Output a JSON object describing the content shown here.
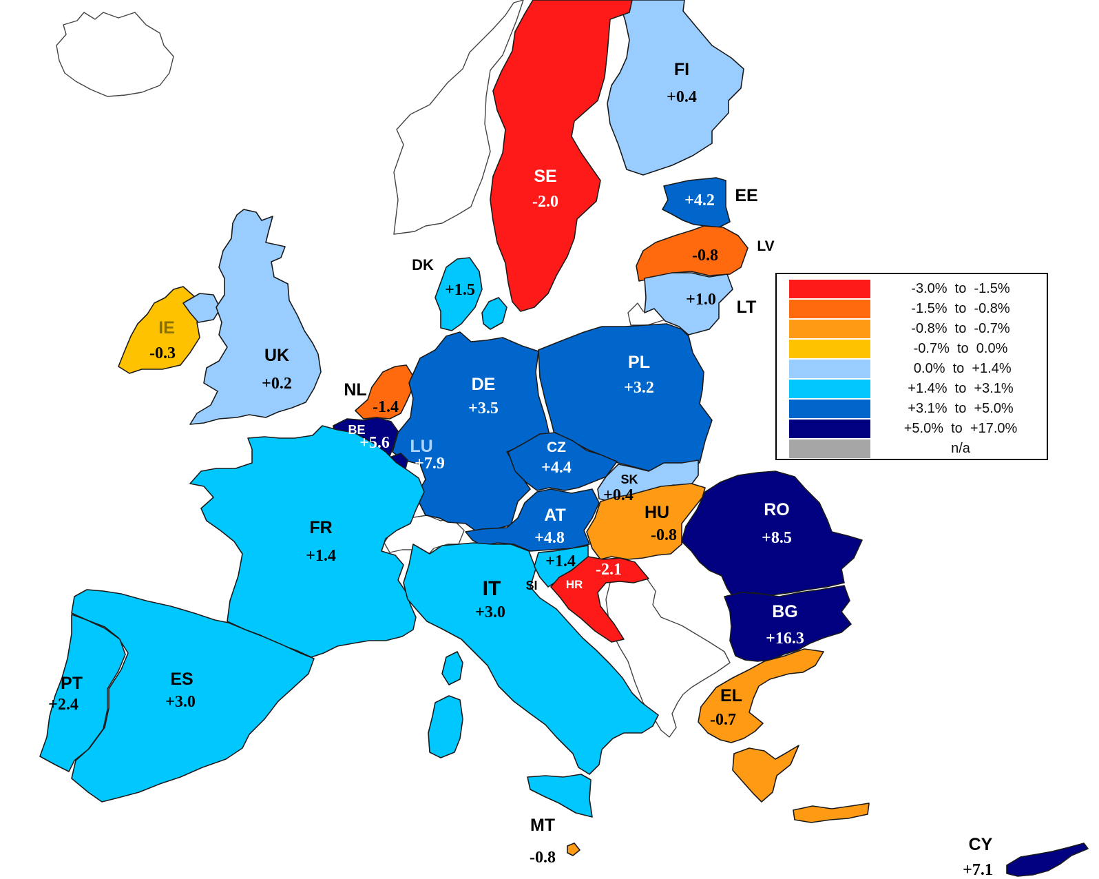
{
  "legend": {
    "items": [
      {
        "label": "-3.0%  to  -1.5%",
        "color": "#ff1a1a"
      },
      {
        "label": "-1.5%  to  -0.8%",
        "color": "#ff6a0e"
      },
      {
        "label": "-0.8%  to  -0.7%",
        "color": "#ff9a14"
      },
      {
        "label": "-0.7%  to  0.0%",
        "color": "#ffc200"
      },
      {
        "label": " 0.0%  to  +1.4%",
        "color": "#99ccff"
      },
      {
        "label": "+1.4%  to  +3.1%",
        "color": "#00c8ff"
      },
      {
        "label": "+3.1%  to  +5.0%",
        "color": "#0066cc"
      },
      {
        "label": "+5.0%  to  +17.0%",
        "color": "#000080"
      },
      {
        "label": "n/a",
        "color": "#a6a6a6"
      }
    ]
  },
  "countries": {
    "FI": {
      "code": "FI",
      "value": "+0.4",
      "color": "#99ccff"
    },
    "SE": {
      "code": "SE",
      "value": "-2.0",
      "color": "#ff1a1a"
    },
    "EE": {
      "code": "EE",
      "value": "+4.2",
      "color": "#0066cc"
    },
    "LV": {
      "code": "LV",
      "value": "-0.8",
      "color": "#ff6a0e"
    },
    "LT": {
      "code": "LT",
      "value": "+1.0",
      "color": "#99ccff"
    },
    "DK": {
      "code": "DK",
      "value": "+1.5",
      "color": "#00c8ff"
    },
    "IE": {
      "code": "IE",
      "value": "-0.3",
      "color": "#ffc200"
    },
    "UK": {
      "code": "UK",
      "value": "+0.2",
      "color": "#99ccff"
    },
    "NL": {
      "code": "NL",
      "value": "-1.4",
      "color": "#ff6a0e"
    },
    "BE": {
      "code": "BE",
      "value": "+5.6",
      "color": "#000080"
    },
    "LU": {
      "code": "LU",
      "value": "+7.9",
      "color": "#000080"
    },
    "DE": {
      "code": "DE",
      "value": "+3.5",
      "color": "#0066cc"
    },
    "PL": {
      "code": "PL",
      "value": "+3.2",
      "color": "#0066cc"
    },
    "CZ": {
      "code": "CZ",
      "value": "+4.4",
      "color": "#0066cc"
    },
    "SK": {
      "code": "SK",
      "value": "+0.4",
      "color": "#99ccff"
    },
    "AT": {
      "code": "AT",
      "value": "+4.8",
      "color": "#0066cc"
    },
    "HU": {
      "code": "HU",
      "value": "-0.8",
      "color": "#ff9a14"
    },
    "RO": {
      "code": "RO",
      "value": "+8.5",
      "color": "#000080"
    },
    "BG": {
      "code": "BG",
      "value": "+16.3",
      "color": "#000080"
    },
    "FR": {
      "code": "FR",
      "value": "+1.4",
      "color": "#00c8ff"
    },
    "IT": {
      "code": "IT",
      "value": "+3.0",
      "color": "#00c8ff"
    },
    "SI": {
      "code": "SI",
      "value": "+1.4",
      "color": "#00c8ff"
    },
    "HR": {
      "code": "HR",
      "value": "-2.1",
      "color": "#ff1a1a"
    },
    "ES": {
      "code": "ES",
      "value": "+3.0",
      "color": "#00c8ff"
    },
    "PT": {
      "code": "PT",
      "value": "+2.4",
      "color": "#00c8ff"
    },
    "EL": {
      "code": "EL",
      "value": "-0.7",
      "color": "#ff9a14"
    },
    "MT": {
      "code": "MT",
      "value": "-0.8",
      "color": "#ff9a14"
    },
    "CY": {
      "code": "CY",
      "value": "+7.1",
      "color": "#000080"
    }
  }
}
